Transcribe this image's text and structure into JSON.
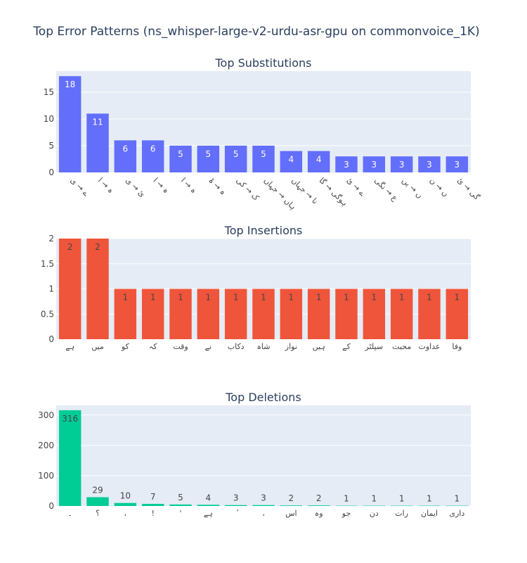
{
  "title": "Top Error Patterns (ns_whisper-large-v2-urdu-asr-gpu on commonvoice_1K)",
  "chart_data": [
    {
      "type": "bar",
      "title": "Top Substitutions",
      "color": "#636efa",
      "label_color": "#ffffff",
      "ylim": [
        0,
        18.95
      ],
      "yticks": [
        0,
        5,
        10,
        15
      ],
      "ytick_labels": [
        "0",
        "5",
        "10",
        "15"
      ],
      "categories": [
        "ے → ی",
        "ہ → ا",
        "ئ → ی",
        "ہ → ا",
        "ہ → ا",
        "ہ → ۂ",
        "ک → کی",
        "ہاں → جہاں",
        "نا → جہاں",
        "ہوگی → گا",
        "ے → ئ",
        "ع → نگی",
        "ں → یں",
        "ں → ن",
        "گی → ئ"
      ],
      "values": [
        18,
        11,
        6,
        6,
        5,
        5,
        5,
        5,
        4,
        4,
        3,
        3,
        3,
        3,
        3
      ]
    },
    {
      "type": "bar",
      "title": "Top Insertions",
      "color": "#ef553b",
      "label_color": "#444444",
      "ylim": [
        0,
        2
      ],
      "yticks": [
        0,
        0.5,
        1,
        1.5,
        2
      ],
      "ytick_labels": [
        "0",
        "0.5",
        "1",
        "1.5",
        "2"
      ],
      "categories": [
        "ہے",
        "میں",
        "کو",
        "کہ",
        "وقت",
        "نے",
        "دکاب",
        "شاہ",
        "نواز",
        "ہیں",
        "کے",
        "سپلٹر",
        "محبت",
        "عداوت",
        "وفا"
      ],
      "values": [
        2,
        2,
        1,
        1,
        1,
        1,
        1,
        1,
        1,
        1,
        1,
        1,
        1,
        1,
        1
      ]
    },
    {
      "type": "bar",
      "title": "Top Deletions",
      "color": "#00cc96",
      "label_color": "#444444",
      "ylim": [
        0,
        332
      ],
      "yticks": [
        0,
        100,
        200,
        300
      ],
      "ytick_labels": [
        "0",
        "100",
        "200",
        "300"
      ],
      "categories": [
        "۔",
        "؟",
        "،",
        "!",
        "'",
        "ہے",
        "ٔ",
        "،",
        "اس",
        "وہ",
        "جو",
        "دن",
        "رات",
        "ایمان",
        "داری"
      ],
      "values": [
        316,
        29,
        10,
        7,
        5,
        4,
        3,
        3,
        2,
        2,
        1,
        1,
        1,
        1,
        1
      ]
    }
  ]
}
